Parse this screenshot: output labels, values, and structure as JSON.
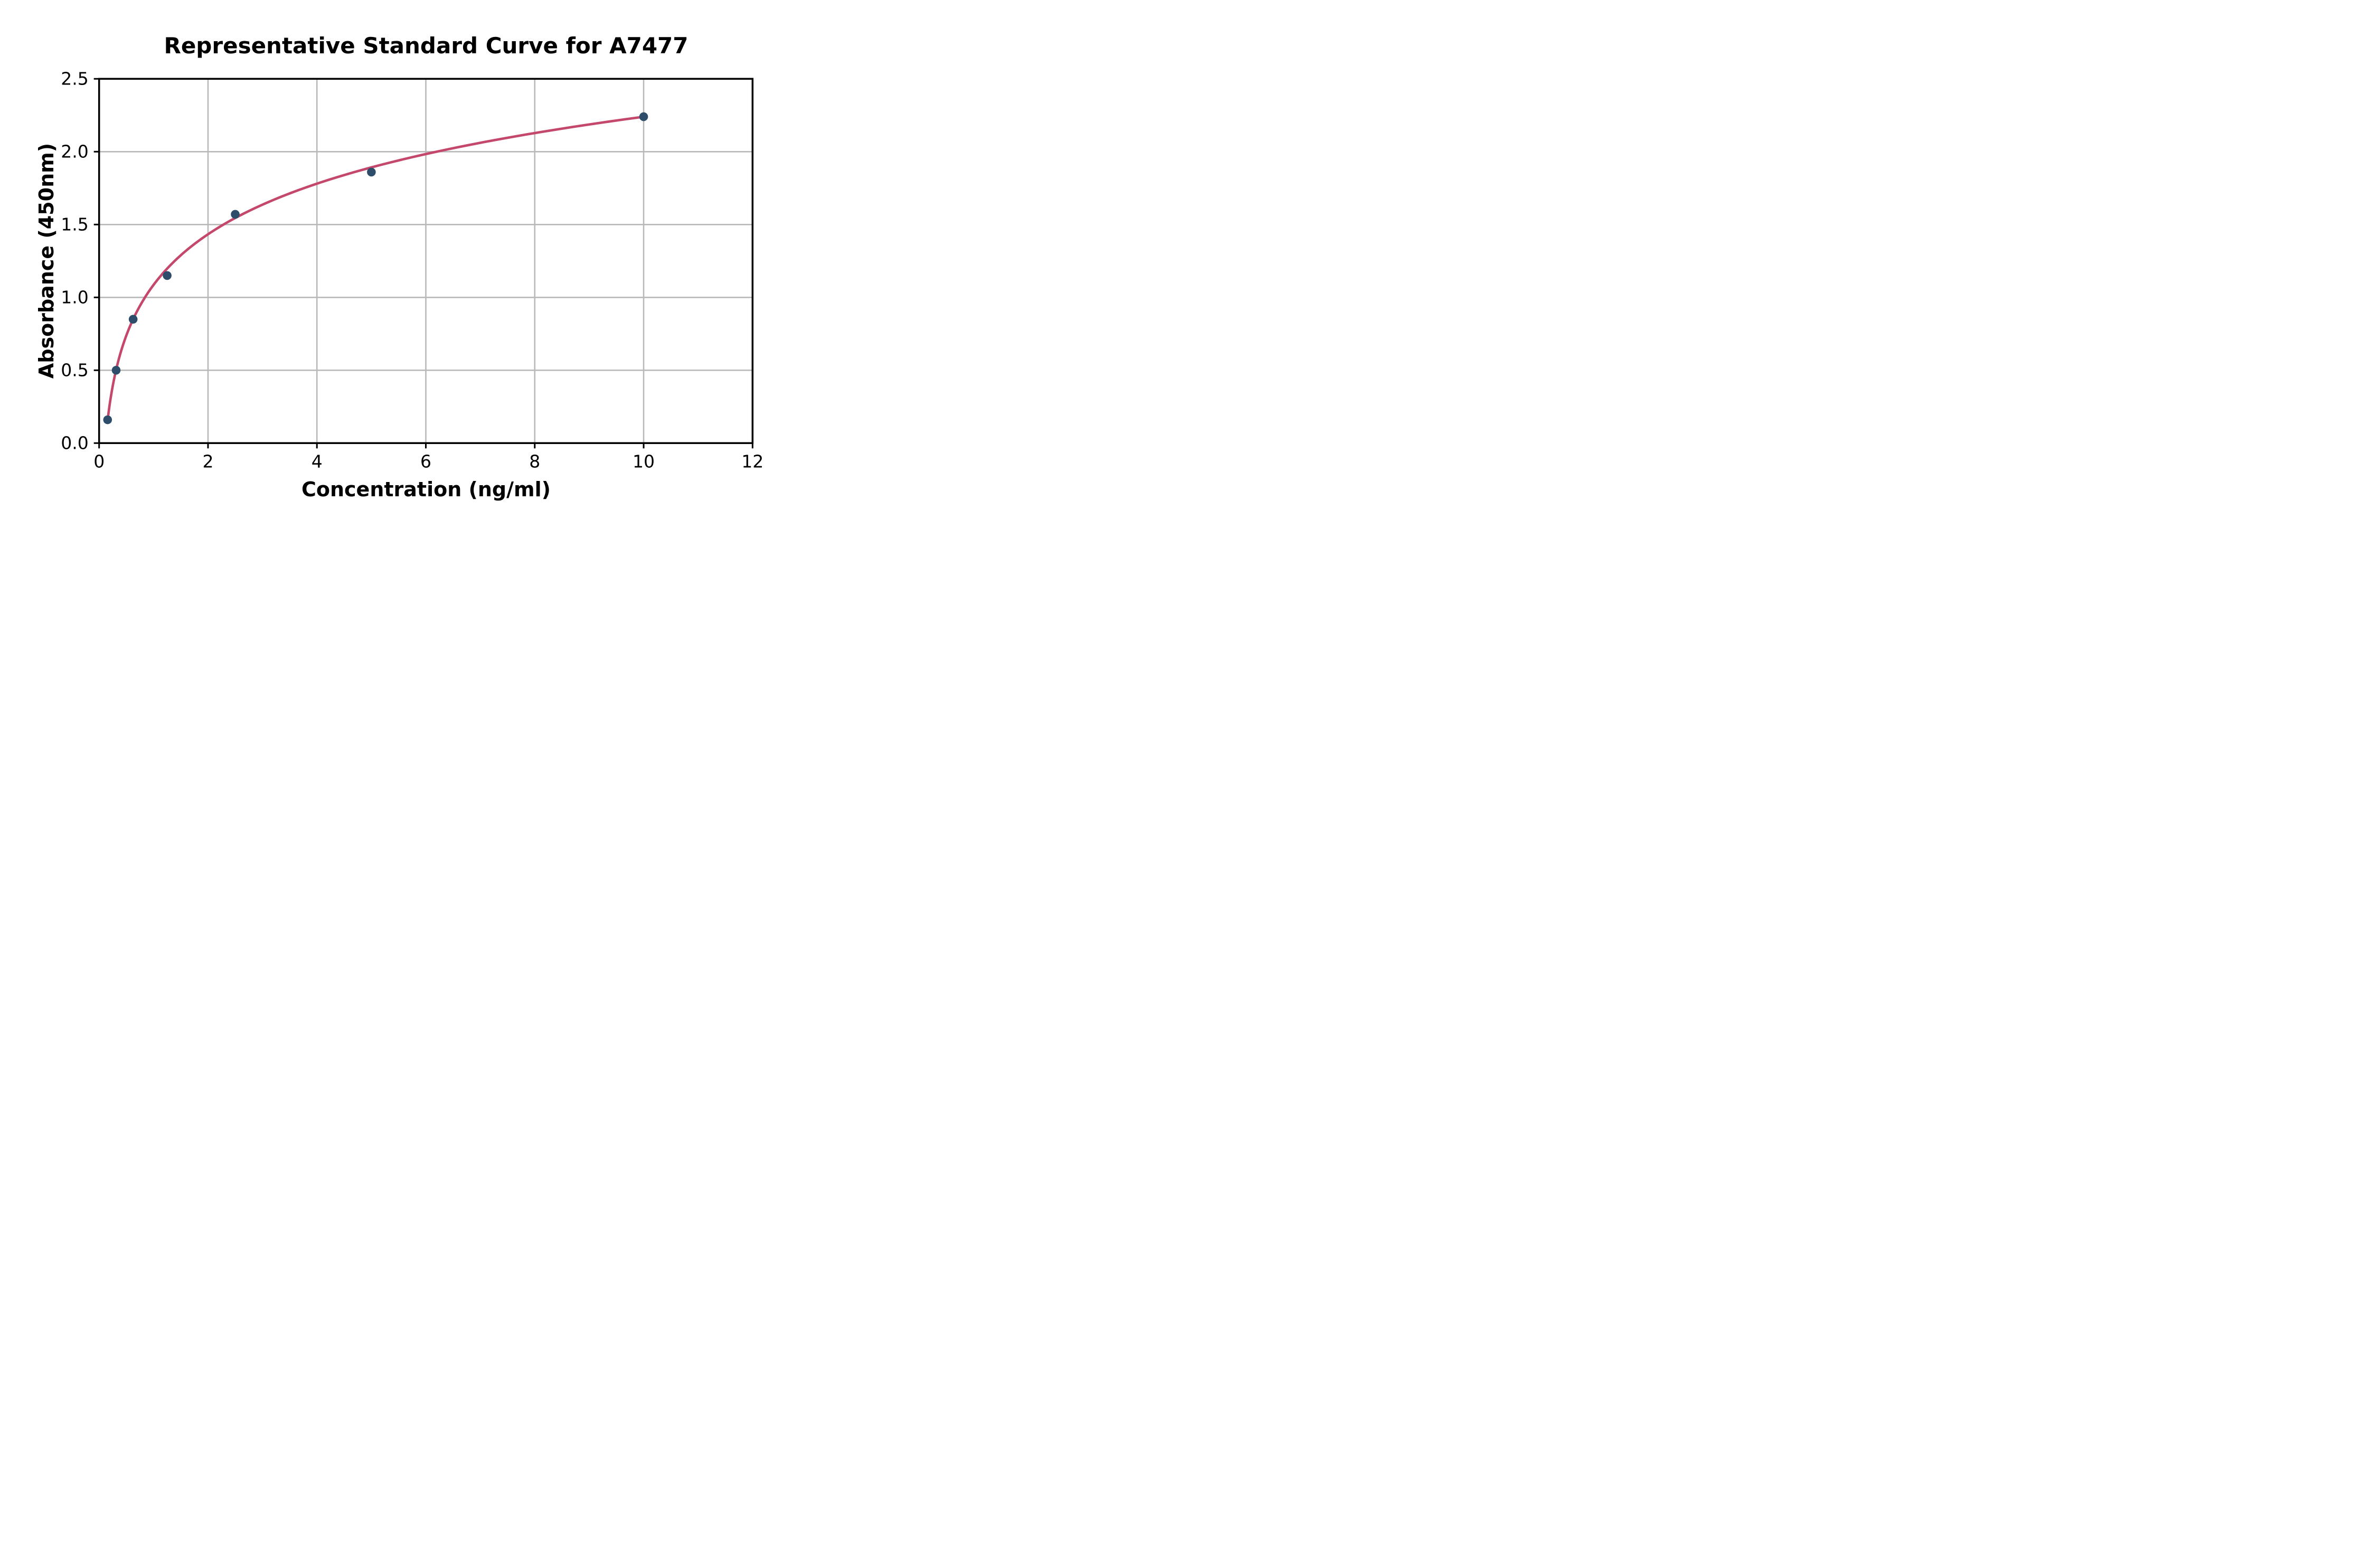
{
  "chart_data": {
    "type": "scatter",
    "title": "Representative Standard Curve for A7477",
    "xlabel": "Concentration (ng/ml)",
    "ylabel": "Absorbance (450nm)",
    "xlim": [
      0,
      12
    ],
    "ylim": [
      0,
      2.5
    ],
    "grid": true,
    "legend": "none",
    "xticks": [
      {
        "value": 0,
        "label": "0"
      },
      {
        "value": 2,
        "label": "2"
      },
      {
        "value": 4,
        "label": "4"
      },
      {
        "value": 6,
        "label": "6"
      },
      {
        "value": 8,
        "label": "8"
      },
      {
        "value": 10,
        "label": "10"
      },
      {
        "value": 12,
        "label": "12"
      }
    ],
    "yticks": [
      {
        "value": 0.0,
        "label": "0.0"
      },
      {
        "value": 0.5,
        "label": "0.5"
      },
      {
        "value": 1.0,
        "label": "1.0"
      },
      {
        "value": 1.5,
        "label": "1.5"
      },
      {
        "value": 2.0,
        "label": "2.0"
      },
      {
        "value": 2.5,
        "label": "2.5"
      }
    ],
    "points": [
      {
        "x": 0.156,
        "y": 0.16
      },
      {
        "x": 0.313,
        "y": 0.5
      },
      {
        "x": 0.625,
        "y": 0.85
      },
      {
        "x": 1.25,
        "y": 1.15
      },
      {
        "x": 2.5,
        "y": 1.57
      },
      {
        "x": 5,
        "y": 1.86
      },
      {
        "x": 10,
        "y": 2.24
      }
    ],
    "fit_curve": {
      "type": "logarithmic",
      "formula": "A = a + b*ln(C)",
      "a": 1.086,
      "b": 0.501,
      "x_start": 0.156,
      "x_end": 10
    },
    "colors": {
      "point": "#2E4D6B",
      "curve": "#C4486C",
      "grid": "#B9B9B9",
      "spine": "#000000",
      "text": "#000000",
      "background": "#FFFFFF"
    }
  }
}
